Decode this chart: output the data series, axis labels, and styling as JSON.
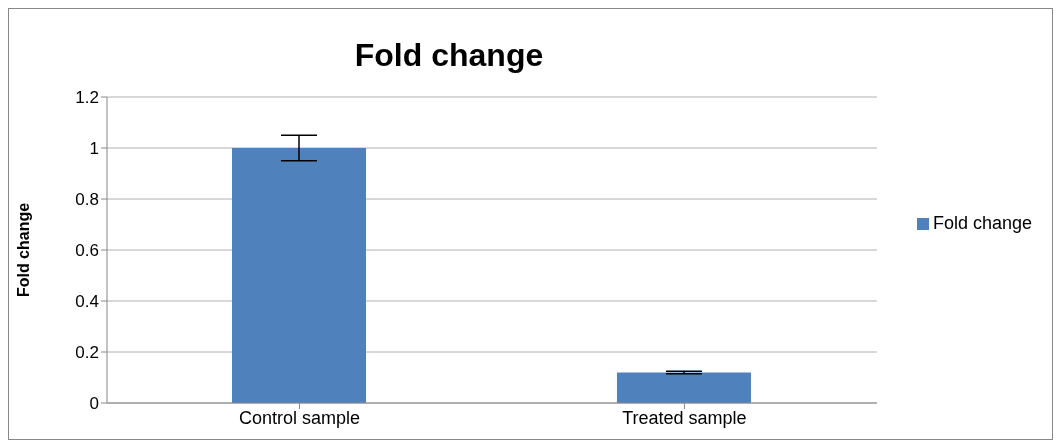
{
  "chart_data": {
    "type": "bar",
    "title": "Fold change",
    "ylabel": "Fold change",
    "categories": [
      "Control sample",
      "Treated sample"
    ],
    "series": [
      {
        "name": "Fold change",
        "color": "#4f81bd",
        "values": [
          1,
          0.12
        ],
        "errors": [
          0.05,
          0.005
        ]
      }
    ],
    "ylim": [
      0,
      1.2
    ],
    "yticks": [
      0,
      0.2,
      0.4,
      0.6,
      0.8,
      1,
      1.2
    ],
    "grid": "y",
    "legend": "right"
  }
}
